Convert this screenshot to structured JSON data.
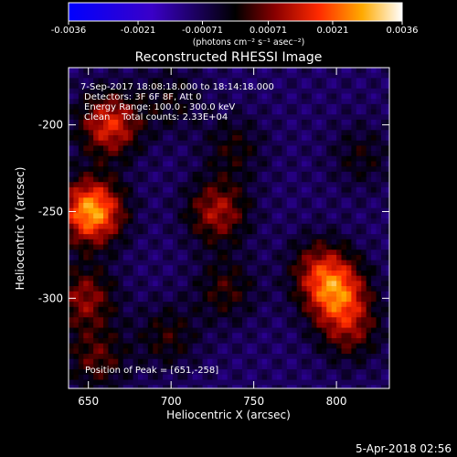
{
  "colorbar": {
    "ticks": [
      {
        "value": -0.0036,
        "label": "-0.0036"
      },
      {
        "value": -0.0021,
        "label": "-0.0021"
      },
      {
        "value": -0.00071,
        "label": "-0.00071"
      },
      {
        "value": 0.00071,
        "label": "0.00071"
      },
      {
        "value": 0.0021,
        "label": "0.0021"
      },
      {
        "value": 0.0036,
        "label": "0.0036"
      }
    ],
    "range": [
      -0.0036,
      0.0036
    ],
    "units": "(photons cm⁻² s⁻¹ asec⁻²)"
  },
  "chart_data": {
    "type": "heatmap",
    "title": "Reconstructed RHESSI Image",
    "xlabel": "Heliocentric X (arcsec)",
    "ylabel": "Heliocentric Y (arcsec)",
    "xlim": [
      638,
      832
    ],
    "ylim": [
      -352,
      -167
    ],
    "xticks": [
      650,
      700,
      750,
      800
    ],
    "yticks": [
      -200,
      -250,
      -300
    ],
    "grid": false,
    "annotations": [
      "7-Sep-2017 18:08:18.000 to 18:14:18.000",
      "Detectors: 3F 6F 8F, Att 0",
      "Energy Range: 100.0 - 300.0 keV",
      "Clean    Total counts: 2.33E+04"
    ],
    "peak_text": "Position of Peak = [651,-258]",
    "peak": [
      651,
      -258
    ],
    "sources": [
      {
        "x": 652,
        "y": -250,
        "amp": 0.0036
      },
      {
        "x": 663,
        "y": -200,
        "amp": 0.0024
      },
      {
        "x": 648,
        "y": -300,
        "amp": 0.0017
      },
      {
        "x": 655,
        "y": -335,
        "amp": 0.0013
      },
      {
        "x": 728,
        "y": -250,
        "amp": 0.0019
      },
      {
        "x": 733,
        "y": -295,
        "amp": 0.0011
      },
      {
        "x": 738,
        "y": -213,
        "amp": 0.0009
      },
      {
        "x": 800,
        "y": -297,
        "amp": 0.0026
      },
      {
        "x": 790,
        "y": -283,
        "amp": 0.0015
      },
      {
        "x": 808,
        "y": -318,
        "amp": 0.0014
      },
      {
        "x": 815,
        "y": -218,
        "amp": 0.0008
      },
      {
        "x": 698,
        "y": -322,
        "amp": 0.001
      },
      {
        "x": 700,
        "y": -185,
        "amp": 0.0008
      }
    ]
  },
  "footer": {
    "date": "5-Apr-2018 02:56"
  }
}
